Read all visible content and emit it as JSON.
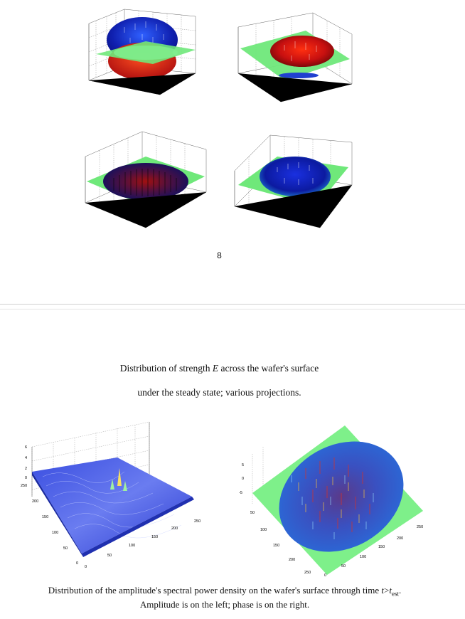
{
  "page_number": "8",
  "caption_top": {
    "line1_pre": "Distribution of strength ",
    "line1_var": "E",
    "line1_post": " across the wafer's surface",
    "line2": "under the steady state; various projections."
  },
  "caption_bottom": {
    "line1_pre": "Distribution of the amplitude's spectral power density on the wafer's surface through time ",
    "line1_var": "t",
    "line1_gt": ">",
    "line1_var2": "t",
    "line1_sub": "est",
    "line1_end": ".",
    "line2": "Amplitude is on the left; phase is on the right."
  },
  "amplitude_plot": {
    "z_ticks": [
      "6",
      "4",
      "2",
      "0"
    ],
    "y_ticks": [
      "250",
      "200",
      "150",
      "100",
      "50",
      "0"
    ],
    "x_ticks": [
      "0",
      "50",
      "100",
      "150",
      "200",
      "250"
    ]
  },
  "phase_plot": {
    "z_ticks": [
      "5",
      "0",
      "-5"
    ],
    "y_ticks": [
      "50",
      "100",
      "150",
      "200",
      "250"
    ],
    "x_ticks": [
      "0",
      "50",
      "100",
      "150",
      "200",
      "250"
    ]
  },
  "colors": {
    "plane": "#7ef08a",
    "dome_blue": "#1b2fd0",
    "dome_red": "#d81c10",
    "amp_blue": "#4a5ee8"
  }
}
